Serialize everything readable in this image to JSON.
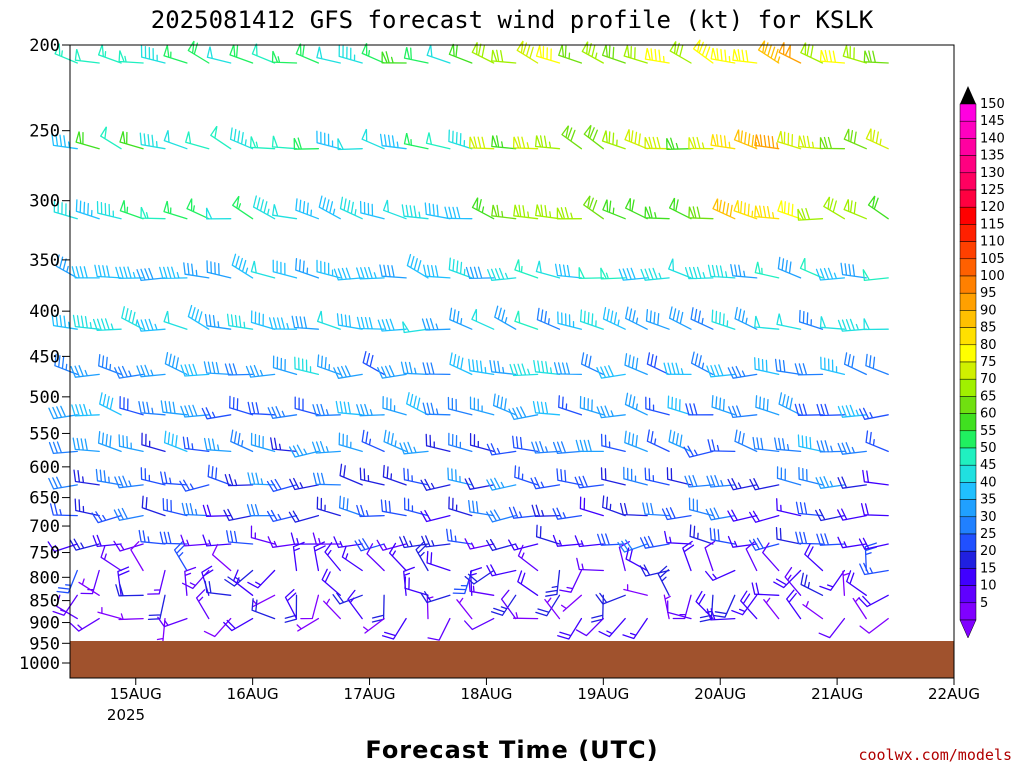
{
  "chart_data": {
    "type": "wind-barb time-height profile",
    "title": "2025081412 GFS forecast wind profile (kt) for KSLK",
    "xlabel": "Forecast Time (UTC)",
    "credit": "coolwx.com/models",
    "units": "kt",
    "y_ticks": [
      "200",
      "250",
      "300",
      "350",
      "400",
      "450",
      "500",
      "550",
      "600",
      "650",
      "700",
      "750",
      "800",
      "850",
      "900",
      "950",
      "1000"
    ],
    "x_ticks": [
      "15AUG",
      "16AUG",
      "17AUG",
      "18AUG",
      "19AUG",
      "20AUG",
      "21AUG",
      "22AUG"
    ],
    "x_year_label": "2025",
    "colorbar_levels": [
      5,
      10,
      15,
      20,
      25,
      30,
      35,
      40,
      45,
      50,
      55,
      60,
      65,
      70,
      75,
      80,
      85,
      90,
      95,
      100,
      105,
      110,
      115,
      120,
      125,
      130,
      135,
      140,
      145,
      150
    ],
    "colors": {
      "ground": "#a0522d",
      "title": "#000000",
      "credit": "#b00000"
    },
    "colorbar_colors": [
      "#8000ff",
      "#6000ff",
      "#4000ff",
      "#2020e0",
      "#2050ff",
      "#2080ff",
      "#20a0ff",
      "#20c0ff",
      "#20e0e0",
      "#20f0c0",
      "#20f060",
      "#40e020",
      "#70e010",
      "#a0f000",
      "#d0f000",
      "#ffff00",
      "#ffe000",
      "#ffc000",
      "#ffa000",
      "#ff8000",
      "#ff6000",
      "#ff4000",
      "#ff2000",
      "#ff0000",
      "#ff0040",
      "#ff0060",
      "#ff0080",
      "#ff00a0",
      "#ff00c0",
      "#ff00e0"
    ],
    "sample_winds": [
      {
        "time": "15AUG 00Z",
        "level": "200",
        "speed_kt": 45,
        "dir_deg": 300
      },
      {
        "time": "16AUG 00Z",
        "level": "250",
        "speed_kt": 15,
        "dir_deg": 250
      },
      {
        "time": "17AUG 00Z",
        "level": "300",
        "speed_kt": 25,
        "dir_deg": 270
      },
      {
        "time": "18AUG 00Z",
        "level": "200",
        "speed_kt": 80,
        "dir_deg": 300
      },
      {
        "time": "19AUG 00Z",
        "level": "200",
        "speed_kt": 70,
        "dir_deg": 280
      },
      {
        "time": "20AUG 00Z",
        "level": "200",
        "speed_kt": 85,
        "dir_deg": 270
      },
      {
        "time": "20AUG 00Z",
        "level": "250",
        "speed_kt": 85,
        "dir_deg": 270
      },
      {
        "time": "21AUG 00Z",
        "level": "250",
        "speed_kt": 55,
        "dir_deg": 280
      },
      {
        "time": "16AUG 00Z",
        "level": "500",
        "speed_kt": 25,
        "dir_deg": 260
      },
      {
        "time": "19AUG 00Z",
        "level": "500",
        "speed_kt": 35,
        "dir_deg": 300
      },
      {
        "time": "17AUG 00Z",
        "level": "850",
        "speed_kt": 20,
        "dir_deg": 250
      },
      {
        "time": "19AUG 00Z",
        "level": "850",
        "speed_kt": 10,
        "dir_deg": 180
      }
    ]
  }
}
